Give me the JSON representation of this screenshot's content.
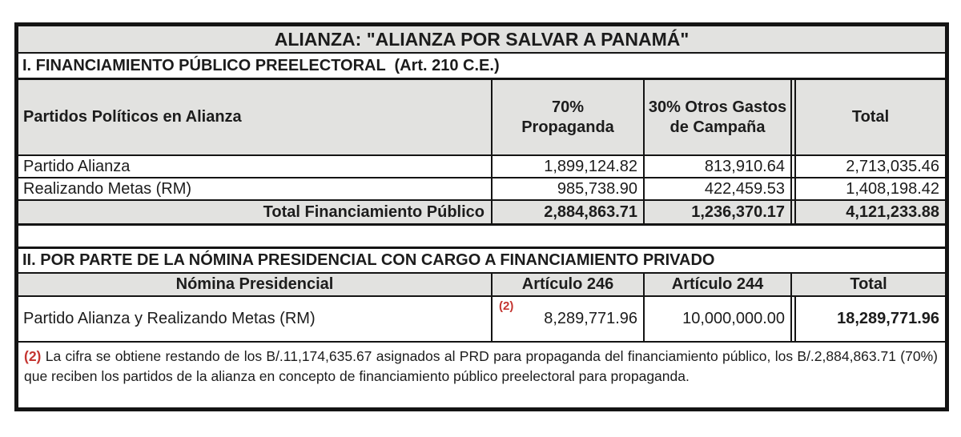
{
  "title": "ALIANZA: \"ALIANZA POR SALVAR A PANAMÁ\"",
  "section1": {
    "heading": "I. FINANCIAMIENTO PÚBLICO PREELECTORAL  (Art. 210 C.E.)",
    "columns": [
      {
        "label": "Partidos Políticos en Alianza"
      },
      {
        "line1": "70%",
        "line2": "Propaganda"
      },
      {
        "line1": "30% Otros Gastos",
        "line2": "de Campaña"
      },
      {
        "label": "Total"
      }
    ],
    "rows": [
      {
        "label": "Partido Alianza",
        "propaganda": "1,899,124.82",
        "otros": "813,910.64",
        "total": "2,713,035.46"
      },
      {
        "label": "Realizando Metas (RM)",
        "propaganda": "985,738.90",
        "otros": "422,459.53",
        "total": "1,408,198.42"
      }
    ],
    "total_row": {
      "label": "Total Financiamiento Público",
      "propaganda": "2,884,863.71",
      "otros": "1,236,370.17",
      "total": "4,121,233.88"
    }
  },
  "section2": {
    "heading": "II. POR PARTE DE LA NÓMINA PRESIDENCIAL CON CARGO A FINANCIAMIENTO PRIVADO",
    "columns": [
      {
        "label": "Nómina Presidencial"
      },
      {
        "label": "Artículo 246"
      },
      {
        "label": "Artículo 244"
      },
      {
        "label": "Total"
      }
    ],
    "row": {
      "label": "Partido Alianza y Realizando Metas (RM)",
      "footnote_ref": "(2)",
      "articulo246": "8,289,771.96",
      "articulo244": "10,000,000.00",
      "total": "18,289,771.96"
    }
  },
  "footnote": {
    "ref": "(2)",
    "text": "La cifra se obtiene restando de los B/.11,174,635.67 asignados al PRD para propaganda del financiamiento público, los B/.2,884,863.71 (70%) que reciben los partidos de la alianza en concepto de financiamiento público preelectoral para propaganda."
  },
  "colors": {
    "header_bg": "#e2e2e0",
    "border": "#141414",
    "text": "#1c1c1c",
    "footnote_red": "#c43430"
  }
}
